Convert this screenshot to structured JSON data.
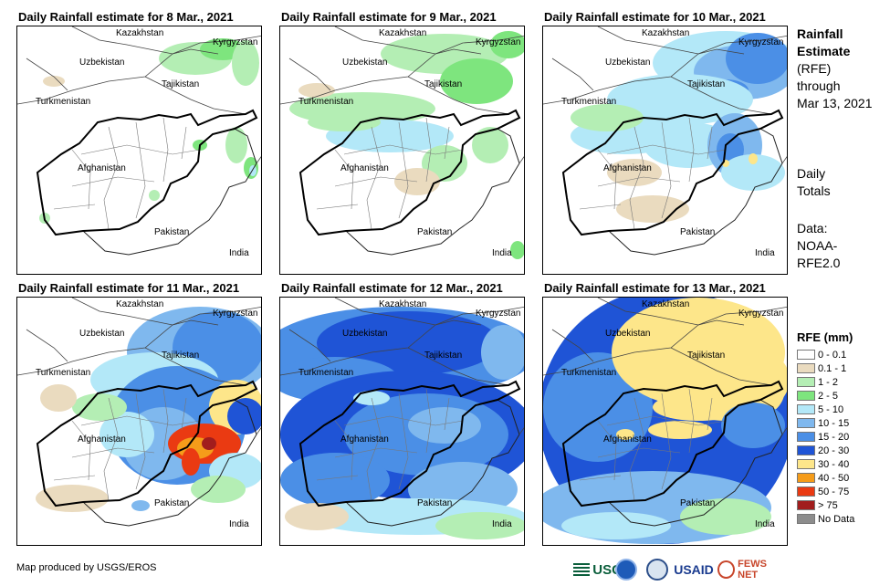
{
  "panels": [
    {
      "title": "Daily Rainfall estimate for 8 Mar., 2021",
      "scene": "light"
    },
    {
      "title": "Daily Rainfall estimate for 9 Mar., 2021",
      "scene": "light2"
    },
    {
      "title": "Daily Rainfall estimate for 10 Mar., 2021",
      "scene": "moderate"
    },
    {
      "title": "Daily Rainfall estimate for 11 Mar., 2021",
      "scene": "heavy"
    },
    {
      "title": "Daily Rainfall estimate for 12 Mar., 2021",
      "scene": "widespread"
    },
    {
      "title": "Daily Rainfall estimate for 13 Mar., 2021",
      "scene": "yellow"
    }
  ],
  "countries": {
    "kazakhstan": "Kazakhstan",
    "kyrgyzstan": "Kyrgyzstan",
    "uzbekistan": "Uzbekistan",
    "tajikistan": "Tajikistan",
    "turkmenistan": "Turkmenistan",
    "afghanistan": "Afghanistan",
    "pakistan": "Pakistan",
    "india": "India"
  },
  "side": {
    "title_line1": "Rainfall",
    "title_line2": "Estimate",
    "title_line3": "(RFE)",
    "through": "through",
    "date": "Mar 13, 2021",
    "totals_line1": "Daily",
    "totals_line2": "Totals",
    "data_line1": "Data:",
    "data_line2": "NOAA-",
    "data_line3": "RFE2.0"
  },
  "legend": {
    "title": "RFE (mm)",
    "items": [
      {
        "label": "0 - 0.1",
        "color": "#ffffff"
      },
      {
        "label": "0.1 - 1",
        "color": "#eadbbf"
      },
      {
        "label": "1 - 2",
        "color": "#b4eeb4"
      },
      {
        "label": "2 - 5",
        "color": "#7ee57e"
      },
      {
        "label": "5 - 10",
        "color": "#b3e8f8"
      },
      {
        "label": "10 - 15",
        "color": "#7fb8ee"
      },
      {
        "label": "15 - 20",
        "color": "#4b8fe6"
      },
      {
        "label": "20 - 30",
        "color": "#1f54d6"
      },
      {
        "label": "30 - 40",
        "color": "#fde68a"
      },
      {
        "label": "40 - 50",
        "color": "#f59c1a"
      },
      {
        "label": "50 - 75",
        "color": "#ea3a12"
      },
      {
        "label": "> 75",
        "color": "#a11d1d"
      },
      {
        "label": "No Data",
        "color": "#8c8c8c"
      }
    ]
  },
  "footer": "Map produced by USGS/EROS",
  "logos": {
    "usgs": "USGS",
    "usaid": "USAID",
    "fews": "FEWS NET"
  }
}
